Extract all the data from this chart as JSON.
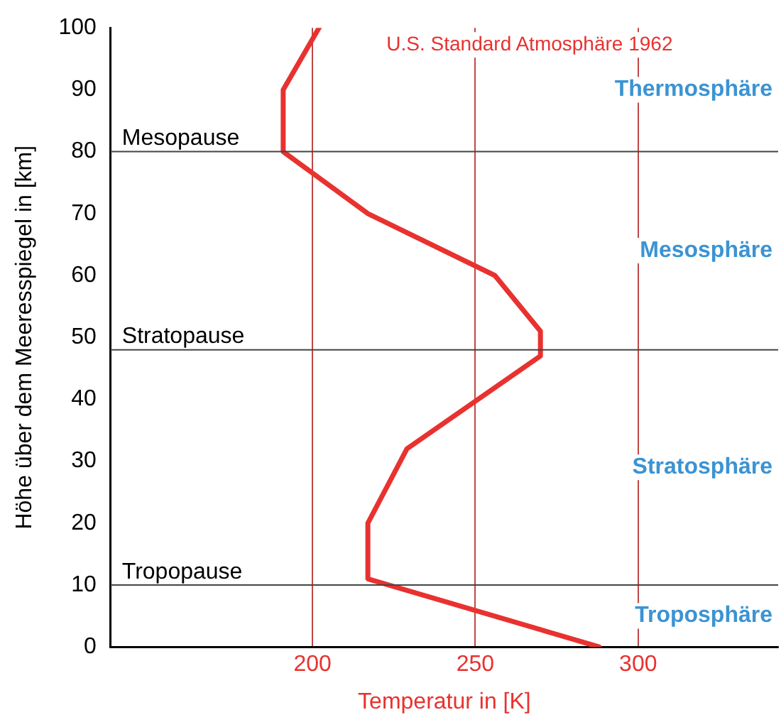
{
  "chart_data": {
    "type": "line",
    "xlabel": "Temperatur in [K]",
    "ylabel": "Höhe über dem Meeresspiegel in [km]",
    "series": [
      {
        "color": "#e8322f",
        "x": [
          288,
          217,
          217,
          229,
          270,
          270,
          256,
          217,
          191,
          191,
          202
        ],
        "values": [
          0,
          11,
          20,
          32,
          47,
          51,
          60,
          70,
          80,
          90,
          100
        ]
      }
    ],
    "xlim": [
      138,
      343
    ],
    "xticks": [
      200,
      250,
      300
    ],
    "ylim": [
      0,
      100
    ],
    "yticks": [
      0,
      10,
      20,
      30,
      40,
      50,
      60,
      70,
      80,
      90,
      100
    ],
    "grid": "x",
    "legend": false,
    "marker": "none",
    "line_style": "solid",
    "ref_lines": [
      {
        "axis": "y",
        "value": 80,
        "label": "Mesopause"
      },
      {
        "axis": "y",
        "value": 48,
        "label": "Stratopause"
      },
      {
        "axis": "y",
        "value": 10,
        "label": "Tropopause"
      }
    ],
    "annotations": [
      "U.S. Standard Atmosphäre 1962",
      "Thermosphäre",
      "Mesosphäre",
      "Stratosphäre",
      "Troposphäre"
    ]
  }
}
